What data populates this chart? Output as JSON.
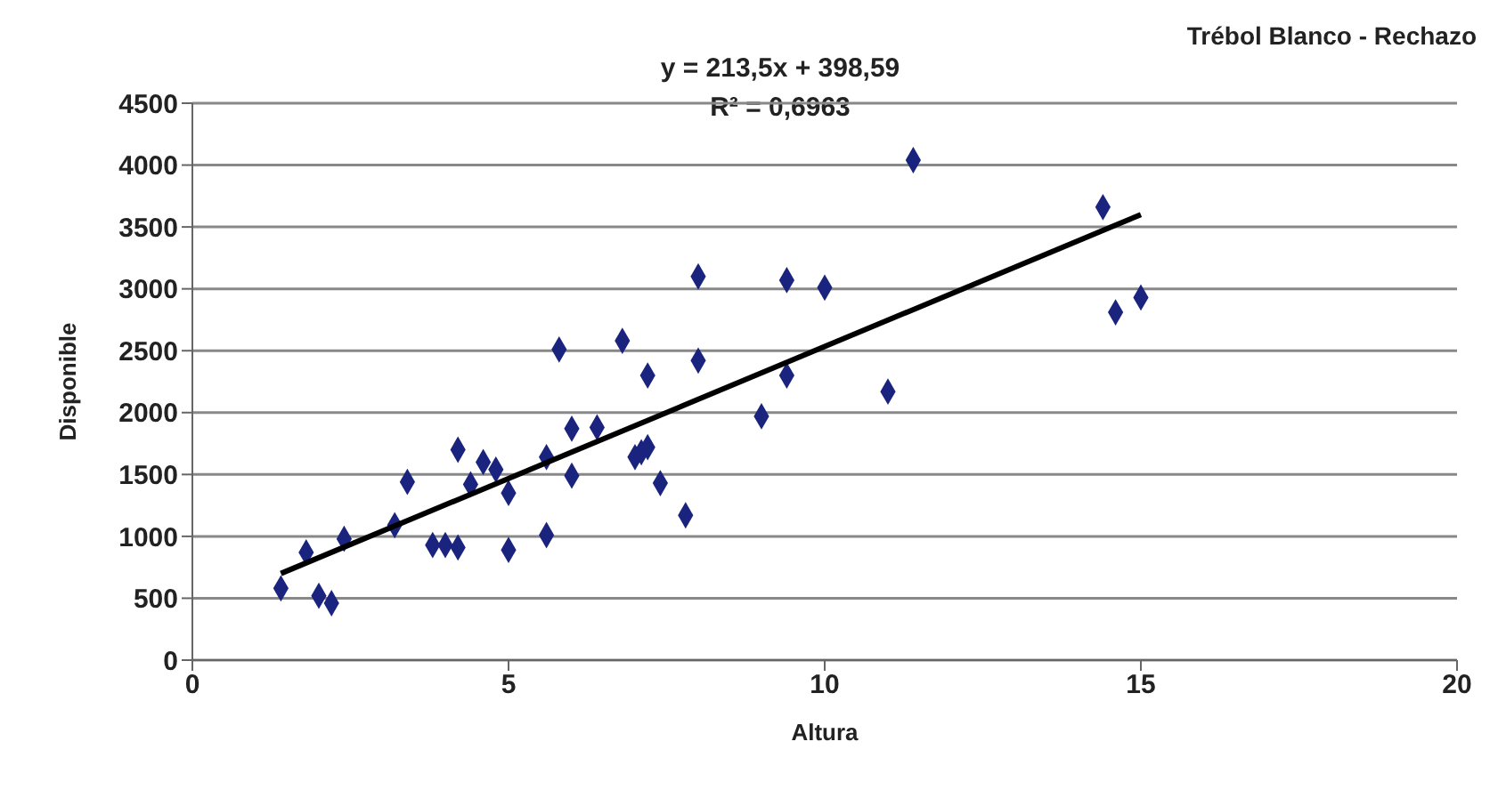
{
  "chart_data": {
    "type": "scatter",
    "title": "Trébol Blanco - Rechazo",
    "xlabel": "Altura",
    "ylabel": "Disponible",
    "annotations": [
      "y = 213,5x + 398,59",
      "R² = 0,6963"
    ],
    "xlim": [
      0,
      20
    ],
    "xticks": [
      0,
      5,
      10,
      15,
      20
    ],
    "ylim": [
      0,
      4500
    ],
    "yticks": [
      0,
      500,
      1000,
      1500,
      2000,
      2500,
      3000,
      3500,
      4000,
      4500
    ],
    "grid": "y",
    "series": [
      {
        "color": "#1a237e",
        "marker": "diamond",
        "x": [
          1.4,
          1.8,
          2.0,
          2.2,
          2.4,
          3.2,
          3.4,
          3.8,
          4.0,
          4.2,
          4.2,
          4.4,
          4.6,
          4.8,
          5.0,
          5.0,
          5.6,
          5.6,
          5.8,
          6.0,
          6.0,
          6.4,
          6.8,
          7.0,
          7.1,
          7.2,
          7.2,
          7.4,
          7.8,
          8.0,
          8.0,
          9.0,
          9.4,
          9.4,
          10.0,
          11.0,
          11.4,
          14.4,
          14.6,
          15.0
        ],
        "values": [
          580,
          870,
          520,
          460,
          980,
          1090,
          1440,
          930,
          930,
          910,
          1700,
          1420,
          1600,
          1540,
          1350,
          890,
          1010,
          1640,
          2510,
          1870,
          1490,
          1880,
          2580,
          1640,
          1680,
          1720,
          2300,
          1430,
          1170,
          3100,
          2420,
          1970,
          3070,
          2300,
          3010,
          2170,
          4040,
          3660,
          2810,
          2930
        ]
      },
      {
        "type": "line",
        "color": "#000000",
        "marker": "none",
        "x": [
          1.4,
          15
        ],
        "values": [
          700,
          3600
        ]
      }
    ]
  }
}
